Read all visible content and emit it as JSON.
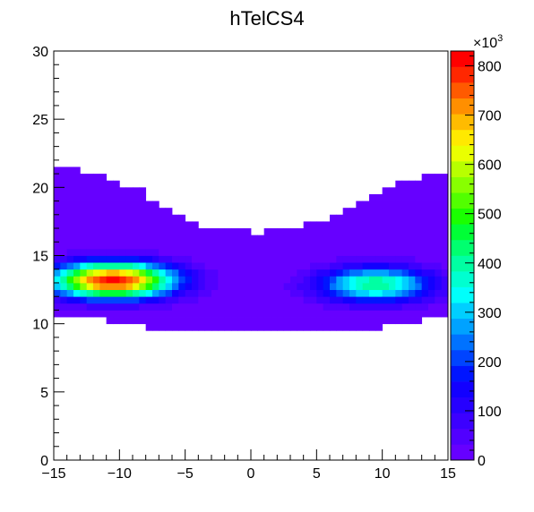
{
  "chart_data": {
    "type": "heatmap",
    "title": "hTelCS4",
    "xlim": [
      -15,
      15
    ],
    "ylim": [
      0,
      30
    ],
    "x_ticks": [
      "−15",
      "−10",
      "−5",
      "0",
      "5",
      "10",
      "15"
    ],
    "y_ticks": [
      "0",
      "5",
      "10",
      "15",
      "20",
      "25",
      "30"
    ],
    "z_range": [
      0,
      830000
    ],
    "z_ticks": [
      "0",
      "100",
      "200",
      "300",
      "400",
      "500",
      "600",
      "700",
      "800"
    ],
    "z_multiplier": "×10",
    "z_multiplier_exp": "3",
    "grid": false,
    "palette": [
      "#6600ff",
      "#5100ff",
      "#3c00ff",
      "#2600ff",
      "#1200ff",
      "#0015ff",
      "#0044ff",
      "#0072ff",
      "#00a2ff",
      "#00cfff",
      "#00fffb",
      "#00ffd0",
      "#00ffa3",
      "#00ff6f",
      "#00ff36",
      "#1aff00",
      "#52ff00",
      "#88ff00",
      "#b8ff00",
      "#eaff00",
      "#ffe900",
      "#ffbb00",
      "#ff8f00",
      "#ff5a00",
      "#ff2700",
      "#ff0000"
    ],
    "bin_size": 1,
    "envelope": {
      "comment_free_key_note": "",
      "x_bins": [
        -15,
        -14,
        -13,
        -12,
        -11,
        -10,
        -9,
        -8,
        -7,
        -6,
        -5,
        -4,
        -3,
        -2,
        -1,
        0,
        1,
        2,
        3,
        4,
        5,
        6,
        7,
        8,
        9,
        10,
        11,
        12,
        13,
        14
      ],
      "y_min": [
        10.9,
        10.9,
        10.7,
        10.5,
        10.4,
        10.2,
        10.0,
        9.6,
        9.6,
        9.6,
        9.6,
        9.6,
        9.6,
        9.6,
        9.6,
        9.6,
        9.6,
        9.6,
        9.6,
        9.6,
        9.6,
        9.6,
        9.6,
        9.6,
        9.6,
        10.0,
        10.2,
        10.4,
        10.6,
        10.9
      ],
      "y_max": [
        21.5,
        21.4,
        20.6,
        20.6,
        20.2,
        19.9,
        19.6,
        18.8,
        18.2,
        17.8,
        17.5,
        17.0,
        16.9,
        16.8,
        16.7,
        16.5,
        16.9,
        16.9,
        16.8,
        17.1,
        17.4,
        17.7,
        18.2,
        18.7,
        19.3,
        19.8,
        20.2,
        20.4,
        20.9,
        21.0
      ]
    },
    "hotspots": [
      {
        "x": -10.5,
        "y": 13.2,
        "peak": 820000,
        "sx": 3.2,
        "sy": 0.9
      },
      {
        "x": 9.5,
        "y": 12.9,
        "peak": 420000,
        "sx": 3.0,
        "sy": 0.9
      }
    ]
  }
}
